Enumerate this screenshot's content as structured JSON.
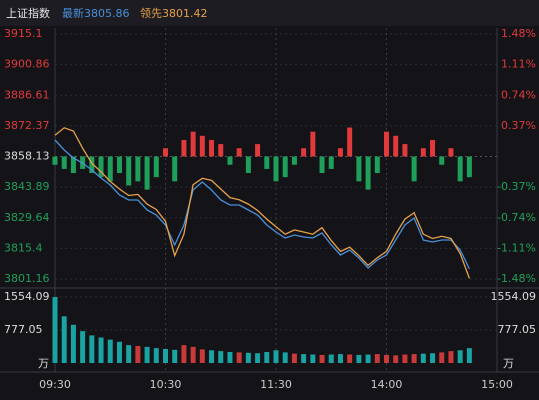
{
  "chart_data": [
    {
      "type": "line",
      "title": "上证指数",
      "annotations": [
        "最新3805.86",
        "领先3801.42"
      ],
      "x": [
        0,
        5,
        10,
        15,
        20,
        25,
        30,
        35,
        40,
        45,
        50,
        55,
        60,
        65,
        70,
        75,
        80,
        85,
        90,
        95,
        100,
        105,
        110,
        115,
        120,
        125,
        130,
        135,
        140,
        145,
        150,
        155,
        160,
        165,
        170,
        175,
        180,
        185,
        190,
        195,
        200,
        205,
        210,
        215,
        220,
        225
      ],
      "xlim": [
        0,
        240
      ],
      "ylim": [
        3801.16,
        3915.1
      ],
      "yticks": [
        3915.1,
        3900.86,
        3886.61,
        3872.37,
        3858.13,
        3843.89,
        3829.64,
        3815.4,
        3801.16
      ],
      "y2lim": [
        -1.48,
        1.48
      ],
      "y2ticks": [
        {
          "value": 1.48,
          "label": "1.48%"
        },
        {
          "value": 1.11,
          "label": "1.11%"
        },
        {
          "value": 0.74,
          "label": "0.74%"
        },
        {
          "value": 0.37,
          "label": "0.37%"
        },
        {
          "value": -0.37,
          "label": "-0.37%"
        },
        {
          "value": -0.74,
          "label": "-0.74%"
        },
        {
          "value": -1.11,
          "label": "-1.11%"
        },
        {
          "value": -1.48,
          "label": "-1.48%"
        }
      ],
      "grid": true,
      "series": [
        {
          "type": "line",
          "color": "#4a90d9",
          "values": [
            3865.8,
            3861.15,
            3857.43,
            3855.1,
            3851.84,
            3848.12,
            3844.87,
            3840.22,
            3837.9,
            3837.9,
            3833.24,
            3830.91,
            3826.26,
            3816.96,
            3826.26,
            3842.54,
            3846.26,
            3842.54,
            3837.9,
            3835.57,
            3835.57,
            3833.24,
            3830.91,
            3826.26,
            3823.01,
            3820.22,
            3821.61,
            3820.68,
            3820.22,
            3822.54,
            3816.96,
            3812.31,
            3814.63,
            3810.91,
            3806.26,
            3809.98,
            3812.31,
            3819.29,
            3826.26,
            3829.52,
            3819.29,
            3818.36,
            3819.29,
            3819.29,
            3814.63,
            3805.86
          ]
        },
        {
          "type": "line",
          "color": "#e8a24a",
          "values": [
            3868.0,
            3871.5,
            3870.0,
            3862.0,
            3855.0,
            3851.0,
            3846.5,
            3843.0,
            3840.0,
            3840.5,
            3836.0,
            3833.5,
            3828.0,
            3812.0,
            3822.0,
            3845.0,
            3848.0,
            3847.0,
            3843.0,
            3839.0,
            3838.0,
            3836.0,
            3833.0,
            3829.0,
            3825.5,
            3822.0,
            3824.0,
            3823.0,
            3822.0,
            3825.0,
            3819.0,
            3814.0,
            3816.0,
            3812.0,
            3807.5,
            3811.0,
            3814.0,
            3822.0,
            3829.0,
            3832.0,
            3822.0,
            3820.0,
            3821.0,
            3820.0,
            3813.0,
            3801.42
          ]
        },
        {
          "type": "bar",
          "axis": "y2",
          "up_color": "#e03a3a",
          "down_color": "#1fa05a",
          "values": [
            -0.1,
            -0.15,
            -0.2,
            -0.15,
            -0.2,
            -0.25,
            -0.3,
            -0.2,
            -0.35,
            -0.3,
            -0.4,
            -0.25,
            0.1,
            -0.3,
            0.2,
            0.3,
            0.25,
            0.2,
            0.15,
            -0.1,
            0.1,
            -0.2,
            0.15,
            -0.15,
            -0.3,
            -0.25,
            -0.1,
            0.1,
            0.3,
            -0.2,
            -0.15,
            0.1,
            0.35,
            -0.3,
            -0.4,
            -0.2,
            0.3,
            0.25,
            0.15,
            -0.3,
            0.1,
            0.2,
            -0.1,
            0.1,
            -0.3,
            -0.25
          ]
        }
      ]
    },
    {
      "type": "bar",
      "unit": "万",
      "color": "#1aa3a3",
      "up_color": "#c93a3a",
      "x": [
        0,
        5,
        10,
        15,
        20,
        25,
        30,
        35,
        40,
        45,
        50,
        55,
        60,
        65,
        70,
        75,
        80,
        85,
        90,
        95,
        100,
        105,
        110,
        115,
        120,
        125,
        130,
        135,
        140,
        145,
        150,
        155,
        160,
        165,
        170,
        175,
        180,
        185,
        190,
        195,
        200,
        205,
        210,
        215,
        220,
        225
      ],
      "xlim": [
        0,
        240
      ],
      "xticks": [
        {
          "value": 0,
          "label": "09:30"
        },
        {
          "value": 60,
          "label": "10:30"
        },
        {
          "value": 120,
          "label": "11:30"
        },
        {
          "value": 180,
          "label": "14:00"
        },
        {
          "value": 240,
          "label": "15:00"
        }
      ],
      "ylim": [
        0,
        1554.09
      ],
      "yticks": [
        1554.09,
        777.05
      ],
      "values": [
        1554,
        1100,
        900,
        750,
        650,
        600,
        550,
        500,
        420,
        400,
        380,
        350,
        330,
        310,
        420,
        380,
        320,
        300,
        280,
        260,
        250,
        240,
        230,
        260,
        300,
        250,
        220,
        210,
        200,
        190,
        200,
        210,
        200,
        190,
        200,
        210,
        190,
        180,
        200,
        210,
        220,
        230,
        250,
        280,
        300,
        350
      ]
    }
  ]
}
